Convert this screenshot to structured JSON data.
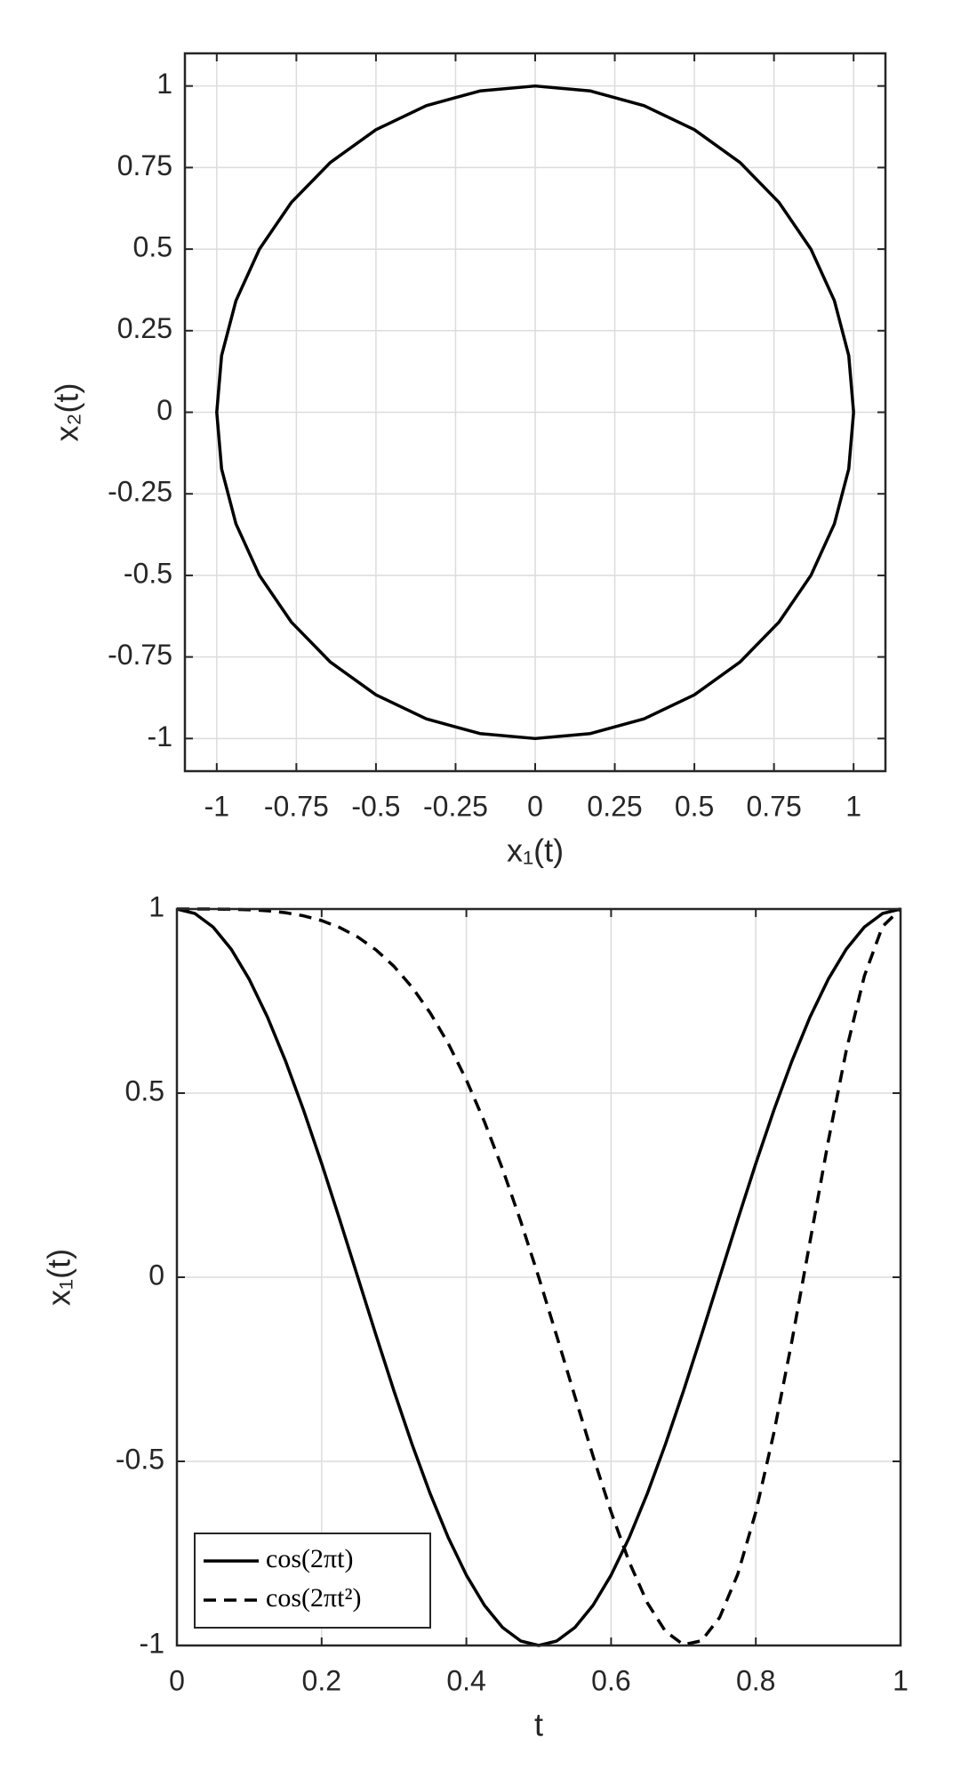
{
  "chart_data": [
    {
      "type": "line",
      "xlabel": "x₁(t)",
      "ylabel": "x₂(t)",
      "x": [
        1,
        0.9848,
        0.9397,
        0.866,
        0.766,
        0.6428,
        0.5,
        0.342,
        0.1736,
        0,
        -0.1736,
        -0.342,
        -0.5,
        -0.6428,
        -0.766,
        -0.866,
        -0.9397,
        -0.9848,
        -1,
        -0.9848,
        -0.9397,
        -0.866,
        -0.766,
        -0.6428,
        -0.5,
        -0.342,
        -0.1736,
        0,
        0.1736,
        0.342,
        0.5,
        0.6428,
        0.766,
        0.866,
        0.9397,
        0.9848,
        1
      ],
      "series": [
        {
          "color": "#000000",
          "linestyle": "solid",
          "values": [
            0,
            0.1736,
            0.342,
            0.5,
            0.6428,
            0.766,
            0.866,
            0.9397,
            0.9848,
            1,
            0.9848,
            0.9397,
            0.866,
            0.766,
            0.6428,
            0.5,
            0.342,
            0.1736,
            0,
            -0.1736,
            -0.342,
            -0.5,
            -0.6428,
            -0.766,
            -0.866,
            -0.9397,
            -0.9848,
            -1,
            -0.9848,
            -0.9397,
            -0.866,
            -0.766,
            -0.6428,
            -0.5,
            -0.342,
            -0.1736,
            0
          ]
        }
      ],
      "xlim": [
        -1.1,
        1.1
      ],
      "ylim": [
        -1.1,
        1.1
      ],
      "xticks": [
        -1,
        -0.75,
        -0.5,
        -0.25,
        0,
        0.25,
        0.5,
        0.75,
        1
      ],
      "yticks": [
        -1,
        -0.75,
        -0.5,
        -0.25,
        0,
        0.25,
        0.5,
        0.75,
        1
      ],
      "grid": true
    },
    {
      "type": "line",
      "xlabel": "t",
      "ylabel": "x₁(t)",
      "x": [
        0,
        0.025,
        0.05,
        0.075,
        0.1,
        0.125,
        0.15,
        0.175,
        0.2,
        0.225,
        0.25,
        0.275,
        0.3,
        0.325,
        0.35,
        0.375,
        0.4,
        0.425,
        0.45,
        0.475,
        0.5,
        0.525,
        0.55,
        0.575,
        0.6,
        0.625,
        0.65,
        0.675,
        0.7,
        0.725,
        0.75,
        0.775,
        0.8,
        0.825,
        0.85,
        0.875,
        0.9,
        0.925,
        0.95,
        0.975,
        1
      ],
      "series": [
        {
          "name": "cos(2πt)",
          "color": "#000000",
          "linestyle": "solid",
          "values": [
            1,
            0.9877,
            0.9511,
            0.891,
            0.809,
            0.7071,
            0.5878,
            0.454,
            0.309,
            0.1564,
            0,
            -0.1564,
            -0.309,
            -0.454,
            -0.5878,
            -0.7071,
            -0.809,
            -0.891,
            -0.9511,
            -0.9877,
            -1,
            -0.9877,
            -0.9511,
            -0.891,
            -0.809,
            -0.7071,
            -0.5878,
            -0.454,
            -0.309,
            -0.1564,
            0,
            0.1564,
            0.309,
            0.454,
            0.5878,
            0.7071,
            0.809,
            0.891,
            0.9511,
            0.9877,
            1
          ]
        },
        {
          "name": "cos(2πt²)",
          "color": "#000000",
          "linestyle": "dashed",
          "values": [
            1,
            1,
            0.9999,
            0.9994,
            0.998,
            0.9952,
            0.99,
            0.9815,
            0.9686,
            0.9498,
            0.9239,
            0.8892,
            0.8443,
            0.7876,
            0.7181,
            0.6347,
            0.5358,
            0.4222,
            0.294,
            0.1526,
            0,
            -0.1603,
            -0.3239,
            -0.4853,
            -0.6374,
            -0.773,
            -0.8838,
            -0.9614,
            -0.998,
            -0.9871,
            -0.9239,
            -0.8066,
            -0.6374,
            -0.4222,
            -0.1719,
            0.098,
            0.3681,
            0.616,
            0.8181,
            0.9523,
            1
          ]
        }
      ],
      "xlim": [
        0,
        1
      ],
      "ylim": [
        -1,
        1
      ],
      "xticks": [
        0,
        0.2,
        0.4,
        0.6,
        0.8,
        1
      ],
      "yticks": [
        -1,
        -0.5,
        0,
        0.5,
        1
      ],
      "grid": true,
      "legend": "lower left"
    }
  ]
}
